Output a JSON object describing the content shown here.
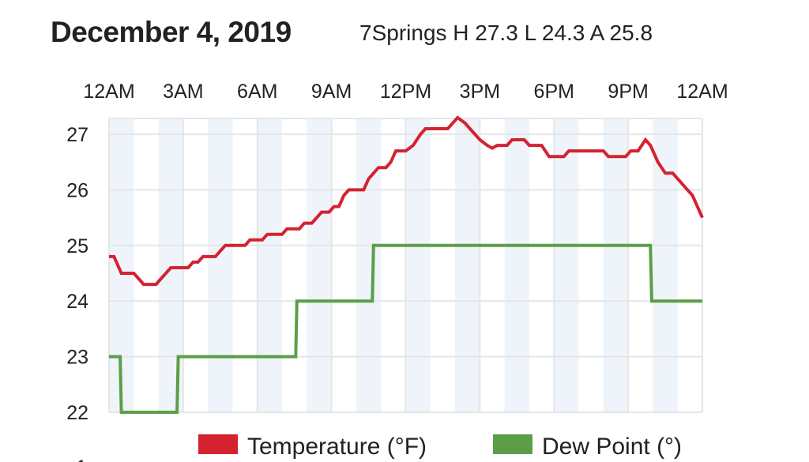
{
  "header": {
    "title": "December 4, 2019",
    "subtitle": "7Springs H 27.3 L 24.3 A 25.8"
  },
  "colors": {
    "temperature": "#d42230",
    "dew_point": "#5c9e47",
    "stripe": "#eef4fa",
    "grid": "#e4e6e8"
  },
  "partial_tick": "1",
  "chart_data": {
    "type": "line",
    "title": "December 4, 2019",
    "subtitle": "7Springs H 27.3 L 24.3 A 25.8",
    "xlabel": "",
    "ylabel": "",
    "xlim": [
      0,
      24
    ],
    "ylim": [
      22,
      27.3
    ],
    "x_ticks": [
      {
        "value": 0,
        "label": "12AM"
      },
      {
        "value": 3,
        "label": "3AM"
      },
      {
        "value": 6,
        "label": "6AM"
      },
      {
        "value": 9,
        "label": "9AM"
      },
      {
        "value": 12,
        "label": "12PM"
      },
      {
        "value": 15,
        "label": "3PM"
      },
      {
        "value": 18,
        "label": "6PM"
      },
      {
        "value": 21,
        "label": "9PM"
      },
      {
        "value": 24,
        "label": "12AM"
      }
    ],
    "x_axis_position": "top",
    "y_ticks": [
      22,
      23,
      24,
      25,
      26,
      27
    ],
    "grid": true,
    "legend": {
      "position": "bottom",
      "entries": [
        "Temperature (°F)",
        "Dew Point (°)"
      ]
    },
    "series": [
      {
        "name": "Temperature (°F)",
        "points": [
          [
            0,
            24.8
          ],
          [
            0.2,
            24.8
          ],
          [
            0.4,
            24.6
          ],
          [
            0.5,
            24.5
          ],
          [
            1.0,
            24.5
          ],
          [
            1.2,
            24.4
          ],
          [
            1.4,
            24.3
          ],
          [
            1.9,
            24.3
          ],
          [
            2.1,
            24.4
          ],
          [
            2.3,
            24.5
          ],
          [
            2.5,
            24.6
          ],
          [
            3.2,
            24.6
          ],
          [
            3.4,
            24.7
          ],
          [
            3.6,
            24.7
          ],
          [
            3.8,
            24.8
          ],
          [
            4.3,
            24.8
          ],
          [
            4.5,
            24.9
          ],
          [
            4.7,
            25.0
          ],
          [
            5.5,
            25.0
          ],
          [
            5.7,
            25.1
          ],
          [
            6.2,
            25.1
          ],
          [
            6.4,
            25.2
          ],
          [
            7.0,
            25.2
          ],
          [
            7.2,
            25.3
          ],
          [
            7.7,
            25.3
          ],
          [
            7.9,
            25.4
          ],
          [
            8.2,
            25.4
          ],
          [
            8.4,
            25.5
          ],
          [
            8.6,
            25.6
          ],
          [
            8.9,
            25.6
          ],
          [
            9.1,
            25.7
          ],
          [
            9.3,
            25.7
          ],
          [
            9.5,
            25.9
          ],
          [
            9.7,
            26.0
          ],
          [
            10.3,
            26.0
          ],
          [
            10.5,
            26.2
          ],
          [
            10.7,
            26.3
          ],
          [
            10.9,
            26.4
          ],
          [
            11.2,
            26.4
          ],
          [
            11.4,
            26.5
          ],
          [
            11.6,
            26.7
          ],
          [
            12.0,
            26.7
          ],
          [
            12.3,
            26.8
          ],
          [
            12.6,
            27.0
          ],
          [
            12.8,
            27.1
          ],
          [
            13.7,
            27.1
          ],
          [
            13.9,
            27.2
          ],
          [
            14.1,
            27.3
          ],
          [
            14.4,
            27.2
          ],
          [
            14.6,
            27.1
          ],
          [
            15.0,
            26.9
          ],
          [
            15.3,
            26.8
          ],
          [
            15.5,
            26.75
          ],
          [
            15.7,
            26.8
          ],
          [
            16.1,
            26.8
          ],
          [
            16.3,
            26.9
          ],
          [
            16.8,
            26.9
          ],
          [
            17.0,
            26.8
          ],
          [
            17.5,
            26.8
          ],
          [
            17.8,
            26.6
          ],
          [
            18.4,
            26.6
          ],
          [
            18.6,
            26.7
          ],
          [
            20.0,
            26.7
          ],
          [
            20.2,
            26.6
          ],
          [
            20.9,
            26.6
          ],
          [
            21.1,
            26.7
          ],
          [
            21.4,
            26.7
          ],
          [
            21.7,
            26.9
          ],
          [
            21.9,
            26.8
          ],
          [
            22.2,
            26.5
          ],
          [
            22.5,
            26.3
          ],
          [
            22.8,
            26.3
          ],
          [
            23.0,
            26.2
          ],
          [
            23.2,
            26.1
          ],
          [
            23.4,
            26.0
          ],
          [
            23.6,
            25.9
          ],
          [
            23.8,
            25.7
          ],
          [
            24.0,
            25.5
          ]
        ]
      },
      {
        "name": "Dew Point (°)",
        "step": true,
        "points": [
          [
            0,
            23
          ],
          [
            0.45,
            23
          ],
          [
            0.5,
            22
          ],
          [
            2.75,
            22
          ],
          [
            2.8,
            23
          ],
          [
            7.55,
            23
          ],
          [
            7.6,
            24
          ],
          [
            10.65,
            24
          ],
          [
            10.7,
            25
          ],
          [
            21.9,
            25
          ],
          [
            21.95,
            24
          ],
          [
            24,
            24
          ]
        ]
      }
    ]
  }
}
